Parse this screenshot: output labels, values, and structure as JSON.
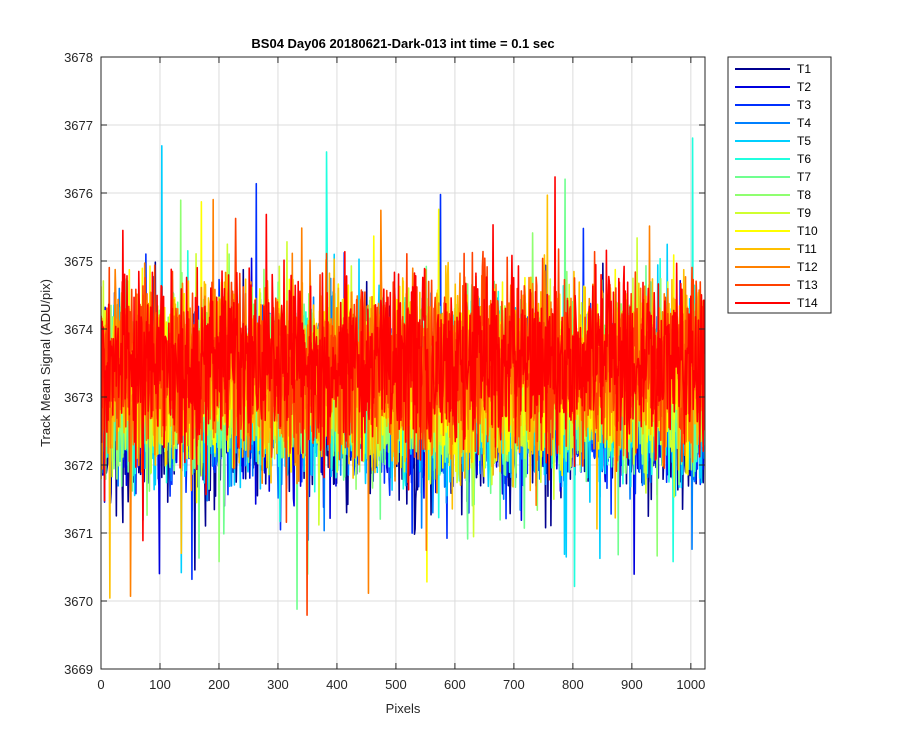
{
  "chart_data": {
    "type": "line",
    "title": "BS04 Day06 20180621-Dark-013 int time = 0.1 sec",
    "xlabel": "Pixels",
    "ylabel": "Track Mean Signal (ADU/pix)",
    "xlim": [
      0,
      1024
    ],
    "ylim": [
      3669,
      3678
    ],
    "xticks": [
      0,
      100,
      200,
      300,
      400,
      500,
      600,
      700,
      800,
      900,
      1000
    ],
    "yticks": [
      3669,
      3670,
      3671,
      3672,
      3673,
      3674,
      3675,
      3676,
      3677,
      3678
    ],
    "grid": true,
    "legend_position": "outside-top-right",
    "n_points_per_series": 1024,
    "series": [
      {
        "name": "T1",
        "color": "#00008F",
        "mean": 3672.7,
        "amplitude": 0.85
      },
      {
        "name": "T2",
        "color": "#0000DF",
        "mean": 3672.8,
        "amplitude": 0.85
      },
      {
        "name": "T3",
        "color": "#0030FF",
        "mean": 3672.9,
        "amplitude": 0.85
      },
      {
        "name": "T4",
        "color": "#0080FF",
        "mean": 3673.0,
        "amplitude": 0.85
      },
      {
        "name": "T5",
        "color": "#00CFFF",
        "mean": 3673.0,
        "amplitude": 0.85
      },
      {
        "name": "T6",
        "color": "#20FFDF",
        "mean": 3673.1,
        "amplitude": 0.85
      },
      {
        "name": "T7",
        "color": "#70FF8F",
        "mean": 3673.1,
        "amplitude": 0.85
      },
      {
        "name": "T8",
        "color": "#8FFF70",
        "mean": 3673.2,
        "amplitude": 0.85
      },
      {
        "name": "T9",
        "color": "#CFFF30",
        "mean": 3673.2,
        "amplitude": 0.85
      },
      {
        "name": "T10",
        "color": "#FFFF00",
        "mean": 3673.3,
        "amplitude": 0.9
      },
      {
        "name": "T11",
        "color": "#FFC000",
        "mean": 3673.4,
        "amplitude": 0.9
      },
      {
        "name": "T12",
        "color": "#FF8000",
        "mean": 3673.4,
        "amplitude": 0.9
      },
      {
        "name": "T13",
        "color": "#FF4000",
        "mean": 3673.5,
        "amplitude": 0.9
      },
      {
        "name": "T14",
        "color": "#FF0000",
        "mean": 3673.5,
        "amplitude": 0.9
      }
    ]
  }
}
